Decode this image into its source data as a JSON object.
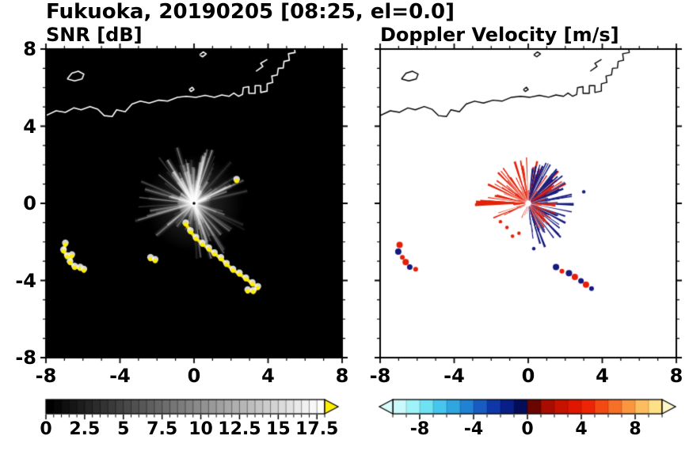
{
  "title": "Fukuoka, 20190205 [08:25, el=0.0]",
  "panels": {
    "snr": {
      "title": "SNR [dB]"
    },
    "velocity": {
      "title": "Doppler Velocity [m/s]"
    }
  },
  "chart_data": {
    "type": "heatmap",
    "description": "Dual-panel weather radar PPI display for Fukuoka, 2019-02-05 08:25, elevation 0.0 deg. Left panel: signal-to-noise ratio SNR [dB] on black background with bright radial clutter rays and strong (yellow, >18 dB) coastal echoes. Right panel: Doppler velocity [m/s] on white background with red (positive) and navy (negative) velocity echoes around the radar at (0,0). Axes are distance from radar, -8 to 8 on both axes.",
    "axes": {
      "xlim": [
        -8,
        8
      ],
      "ylim": [
        -8,
        8
      ],
      "x_tick_values": [
        -8,
        -4,
        0,
        4,
        8
      ],
      "x_tick_labels": [
        "-8",
        "-4",
        "0",
        "4",
        "8"
      ],
      "y_tick_values": [
        8,
        4,
        0,
        -4,
        -8
      ],
      "y_tick_labels": [
        "8",
        "4",
        "0",
        "-4",
        "-8"
      ],
      "minor_tick_step": 1
    },
    "snr_colorbar": {
      "range": [
        0,
        18
      ],
      "tick_values": [
        0,
        2.5,
        5,
        7.5,
        10,
        12.5,
        15,
        17.5
      ],
      "tick_labels": [
        "0",
        "2.5",
        "5",
        "7.5",
        "10",
        "12.5",
        "15",
        "17.5"
      ],
      "minor_step": 0.5,
      "gradient": [
        "#000000",
        "#ffffff"
      ],
      "over_color": "#ffee00"
    },
    "velocity_colorbar": {
      "range": [
        -10,
        10
      ],
      "tick_values": [
        -8,
        -4,
        0,
        4,
        8
      ],
      "tick_labels": [
        "-8",
        "-4",
        "0",
        "4",
        "8"
      ],
      "minor_step": 1,
      "segment_colors": [
        "#c9f9fb",
        "#9ff2f8",
        "#6fe2f2",
        "#46c6ec",
        "#2fa6e0",
        "#2181d2",
        "#185cc2",
        "#0f37a8",
        "#081f87",
        "#040e58",
        "#6b0500",
        "#a80d00",
        "#c81200",
        "#e01700",
        "#ee2505",
        "#f34a14",
        "#f77028",
        "#fa9640",
        "#fcbc60",
        "#fde088"
      ],
      "under_color": "#d8fbfb",
      "over_color": "#fdf6c8"
    },
    "coastline": {
      "color_on_snr": "#ffffff",
      "color_on_velocity": "#000000",
      "main": [
        [
          -8,
          4.55
        ],
        [
          -7.45,
          4.8
        ],
        [
          -6.95,
          4.72
        ],
        [
          -6.5,
          4.95
        ],
        [
          -6.1,
          4.85
        ],
        [
          -5.62,
          5.02
        ],
        [
          -5.2,
          4.88
        ],
        [
          -4.85,
          4.55
        ],
        [
          -4.42,
          4.5
        ],
        [
          -4.18,
          4.85
        ],
        [
          -3.72,
          4.75
        ],
        [
          -3.35,
          5.15
        ],
        [
          -2.9,
          5.3
        ],
        [
          -2.42,
          5.2
        ],
        [
          -1.9,
          5.35
        ],
        [
          -1.42,
          5.3
        ],
        [
          -0.9,
          5.5
        ],
        [
          -0.42,
          5.55
        ],
        [
          0.1,
          5.5
        ],
        [
          0.6,
          5.6
        ],
        [
          1.1,
          5.5
        ],
        [
          1.5,
          5.62
        ],
        [
          1.9,
          5.55
        ],
        [
          2.15,
          5.72
        ],
        [
          2.4,
          5.55
        ],
        [
          2.62,
          5.65
        ],
        [
          2.66,
          6.0
        ],
        [
          2.96,
          6.05
        ],
        [
          2.96,
          5.7
        ],
        [
          3.3,
          5.7
        ],
        [
          3.3,
          6.1
        ],
        [
          3.6,
          6.1
        ],
        [
          3.6,
          5.75
        ],
        [
          3.95,
          5.82
        ],
        [
          3.95,
          6.2
        ],
        [
          4.25,
          6.27
        ],
        [
          4.2,
          6.6
        ],
        [
          4.5,
          6.66
        ],
        [
          4.55,
          7.0
        ],
        [
          4.82,
          7.02
        ],
        [
          4.86,
          7.36
        ],
        [
          5.15,
          7.42
        ],
        [
          5.1,
          7.76
        ],
        [
          5.46,
          7.82
        ],
        [
          5.42,
          8.05
        ]
      ],
      "islands": [
        [
          [
            -6.85,
            6.45
          ],
          [
            -6.6,
            6.75
          ],
          [
            -6.25,
            6.85
          ],
          [
            -5.95,
            6.7
          ],
          [
            -6.05,
            6.45
          ],
          [
            -6.45,
            6.35
          ],
          [
            -6.85,
            6.45
          ]
        ],
        [
          [
            0.3,
            7.7
          ],
          [
            0.5,
            7.85
          ],
          [
            0.66,
            7.75
          ],
          [
            0.46,
            7.6
          ],
          [
            0.3,
            7.7
          ]
        ],
        [
          [
            -0.26,
            5.9
          ],
          [
            -0.1,
            6.02
          ],
          [
            0.0,
            5.9
          ],
          [
            -0.16,
            5.8
          ],
          [
            -0.26,
            5.9
          ]
        ]
      ],
      "breakwater": [
        [
          3.35,
          6.85
        ],
        [
          3.72,
          7.1
        ],
        [
          3.6,
          7.26
        ],
        [
          3.96,
          7.46
        ]
      ]
    },
    "snr_panel": {
      "background": "#000000",
      "seed": 11,
      "echo_color": "#ffee00",
      "ray_groups": [
        {
          "count": 85,
          "ang": [
            10,
            170
          ],
          "len": [
            0.5,
            3.1
          ],
          "alpha": [
            0.08,
            0.5
          ]
        },
        {
          "count": 16,
          "ang": [
            170,
            232
          ],
          "len": [
            0.8,
            3.4
          ],
          "alpha": [
            0.1,
            0.45
          ]
        },
        {
          "count": 30,
          "ang": [
            272,
            348
          ],
          "len": [
            0.5,
            3.2
          ],
          "alpha": [
            0.08,
            0.4
          ]
        },
        {
          "count": 10,
          "ang": [
            232,
            272
          ],
          "len": [
            0.4,
            1.6
          ],
          "alpha": [
            0.08,
            0.3
          ]
        }
      ],
      "echo_chains": [
        [
          [
            -6.95,
            -2.1
          ],
          [
            -7.05,
            -2.45
          ],
          [
            -6.85,
            -2.75
          ],
          [
            -6.6,
            -2.7
          ],
          [
            -6.7,
            -3.05
          ],
          [
            -6.45,
            -3.3
          ],
          [
            -6.15,
            -3.35
          ],
          [
            -5.95,
            -3.45
          ]
        ],
        [
          [
            -0.45,
            -1.05
          ],
          [
            -0.2,
            -1.45
          ],
          [
            0.1,
            -1.8
          ],
          [
            0.45,
            -2.1
          ],
          [
            0.8,
            -2.35
          ],
          [
            1.1,
            -2.6
          ],
          [
            1.45,
            -2.85
          ],
          [
            1.75,
            -3.15
          ],
          [
            2.1,
            -3.45
          ],
          [
            2.45,
            -3.65
          ],
          [
            2.8,
            -3.9
          ],
          [
            3.15,
            -4.15
          ],
          [
            3.45,
            -4.35
          ],
          [
            3.2,
            -4.55
          ],
          [
            2.9,
            -4.52
          ]
        ],
        [
          [
            -2.35,
            -2.85
          ],
          [
            -2.1,
            -2.95
          ]
        ],
        [
          [
            2.3,
            1.2
          ]
        ]
      ]
    },
    "velocity_panel": {
      "background": "#ffffff",
      "seed": 23,
      "red": "#e32109",
      "navy": "#141a7e",
      "wedge_groups": [
        {
          "count": 55,
          "ang": [
            0,
            360
          ],
          "len": [
            0.15,
            0.85
          ],
          "color": "red"
        },
        {
          "count": 60,
          "ang": [
            -85,
            35
          ],
          "len": [
            0.5,
            2.5
          ],
          "color": "navy"
        },
        {
          "count": 35,
          "ang": [
            -70,
            30
          ],
          "len": [
            0.4,
            1.6
          ],
          "color": "red"
        },
        {
          "count": 95,
          "ang": [
            25,
            205
          ],
          "len": [
            0.5,
            2.4
          ],
          "color": "red"
        },
        {
          "count": 18,
          "ang": [
            55,
            85
          ],
          "len": [
            1.4,
            2.5
          ],
          "color": "navy"
        },
        {
          "count": 12,
          "ang": [
            10,
            50
          ],
          "len": [
            1.6,
            2.4
          ],
          "color": "navy"
        },
        {
          "count": 3,
          "ang": [
            176,
            182
          ],
          "len": [
            2.3,
            2.9
          ],
          "color": "red"
        }
      ],
      "coastal_patches": [
        {
          "x": -6.95,
          "y": -2.15,
          "r": 4,
          "color": "red"
        },
        {
          "x": -7.02,
          "y": -2.5,
          "r": 4,
          "color": "navy"
        },
        {
          "x": -6.8,
          "y": -2.8,
          "r": 3,
          "color": "red"
        },
        {
          "x": -6.62,
          "y": -3.05,
          "r": 4,
          "color": "red"
        },
        {
          "x": -6.4,
          "y": -3.3,
          "r": 3.5,
          "color": "navy"
        },
        {
          "x": -6.08,
          "y": -3.42,
          "r": 3,
          "color": "red"
        },
        {
          "x": 1.5,
          "y": -3.3,
          "r": 4,
          "color": "navy"
        },
        {
          "x": 1.82,
          "y": -3.52,
          "r": 3,
          "color": "red"
        },
        {
          "x": 2.2,
          "y": -3.62,
          "r": 4,
          "color": "navy"
        },
        {
          "x": 2.52,
          "y": -3.82,
          "r": 4,
          "color": "red"
        },
        {
          "x": 2.85,
          "y": -4.02,
          "r": 3.5,
          "color": "navy"
        },
        {
          "x": 3.12,
          "y": -4.22,
          "r": 4,
          "color": "red"
        },
        {
          "x": 3.42,
          "y": -4.42,
          "r": 3,
          "color": "navy"
        }
      ],
      "speckles_red": [
        [
          -1.15,
          -1.25
        ],
        [
          -0.85,
          -1.7
        ],
        [
          -0.5,
          -1.55
        ],
        [
          -1.5,
          -0.95
        ]
      ],
      "speckles_navy": [
        [
          0.3,
          -2.35
        ],
        [
          3.0,
          0.6
        ]
      ]
    }
  }
}
